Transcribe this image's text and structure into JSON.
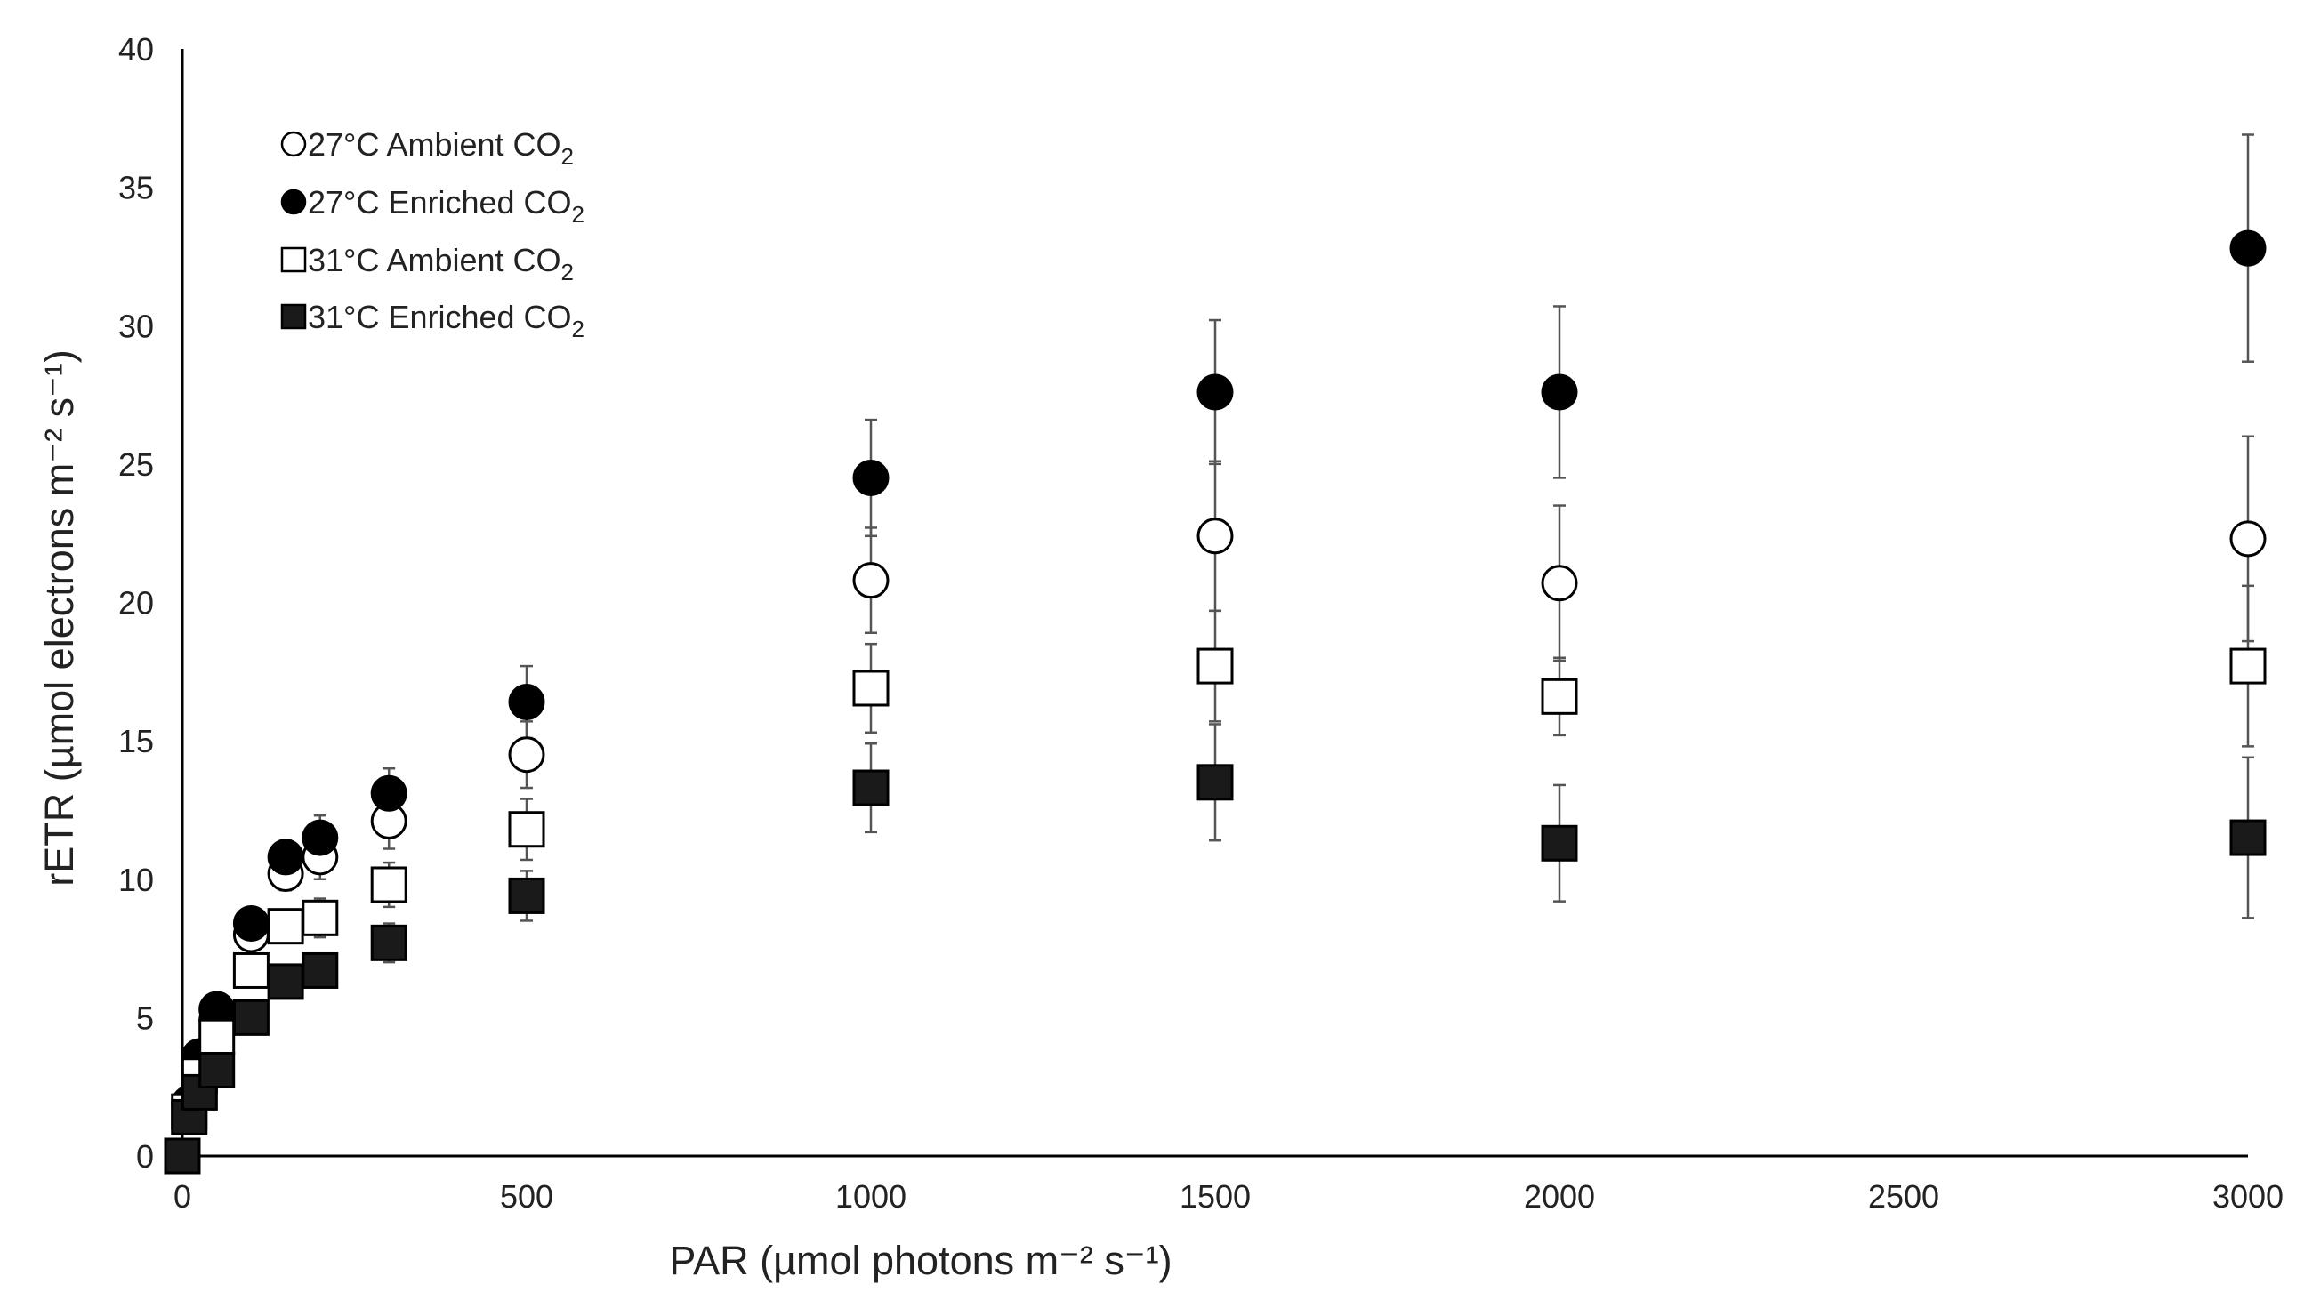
{
  "chart_data": {
    "type": "scatter",
    "xlabel": "PAR (µmol photons m⁻² s⁻¹)",
    "ylabel": "rETR (µmol electrons m⁻² s⁻¹)",
    "xlim": [
      0,
      3000
    ],
    "ylim": [
      0,
      40
    ],
    "xticks": [
      "0",
      "500",
      "1000",
      "1500",
      "2000",
      "2500",
      "3000"
    ],
    "yticks": [
      "0",
      "5",
      "10",
      "15",
      "20",
      "25",
      "30",
      "35",
      "40"
    ],
    "grid": false,
    "legend_position": "top-left",
    "error_bars": true,
    "x": [
      0,
      10,
      25,
      50,
      100,
      150,
      200,
      300,
      500,
      1000,
      1500,
      2000,
      3000
    ],
    "series": [
      {
        "name": "27°C Ambient CO2",
        "marker": "circle-open",
        "color": "#000000",
        "values": [
          0.0,
          1.8,
          3.4,
          4.9,
          8.0,
          10.2,
          10.8,
          12.1,
          14.5,
          20.8,
          22.4,
          20.7,
          22.3
        ],
        "errors": [
          0.0,
          0.2,
          0.3,
          0.4,
          0.5,
          0.6,
          0.8,
          1.0,
          1.2,
          1.9,
          2.7,
          2.8,
          3.7
        ]
      },
      {
        "name": "27°C Enriched CO2",
        "marker": "circle-filled",
        "color": "#000000",
        "values": [
          0.0,
          1.9,
          3.6,
          5.3,
          8.4,
          10.8,
          11.5,
          13.1,
          16.4,
          24.5,
          27.6,
          27.6,
          32.8
        ],
        "errors": [
          0.0,
          0.2,
          0.3,
          0.4,
          0.5,
          0.6,
          0.8,
          0.9,
          1.3,
          2.1,
          2.6,
          3.1,
          4.1
        ]
      },
      {
        "name": "31°C Ambient CO2",
        "marker": "square-open",
        "color": "#000000",
        "values": [
          0.0,
          1.6,
          2.9,
          4.3,
          6.7,
          8.3,
          8.6,
          9.8,
          11.8,
          16.9,
          17.7,
          16.6,
          17.7
        ],
        "errors": [
          0.0,
          0.2,
          0.3,
          0.4,
          0.5,
          0.6,
          0.7,
          0.8,
          1.1,
          1.6,
          2.0,
          1.4,
          2.9
        ]
      },
      {
        "name": "31°C Enriched CO2",
        "marker": "square-filled",
        "color": "#000000",
        "values": [
          0.0,
          1.4,
          2.3,
          3.1,
          5.0,
          6.3,
          6.7,
          7.7,
          9.4,
          13.3,
          13.5,
          11.3,
          11.5
        ],
        "errors": [
          0.0,
          0.2,
          0.3,
          0.3,
          0.4,
          0.4,
          0.5,
          0.7,
          0.9,
          1.6,
          2.1,
          2.1,
          2.9
        ]
      }
    ]
  },
  "legend": {
    "items": [
      {
        "label": "27°C Ambient  CO",
        "sub": "2"
      },
      {
        "label": "27°C Enriched CO",
        "sub": "2"
      },
      {
        "label": "31°C Ambient  CO",
        "sub": "2"
      },
      {
        "label": "31°C Enriched CO",
        "sub": "2"
      }
    ]
  }
}
